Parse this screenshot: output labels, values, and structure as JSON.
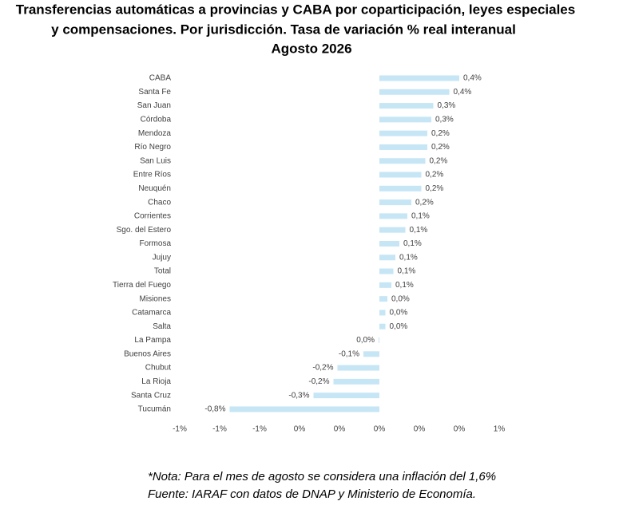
{
  "chart_data": {
    "type": "barh",
    "title": [
      "Transferencias automáticas a provincias y CABA por coparticipación, leyes especiales",
      "y compensaciones. Por jurisdicción. Tasa de variación % real interanual",
      "Agosto 2026"
    ],
    "categories": [
      "CABA",
      "Santa Fe",
      "San Juan",
      "Córdoba",
      "Mendoza",
      "Río Negro",
      "San Luis",
      "Entre Ríos",
      "Neuquén",
      "Chaco",
      "Corrientes",
      "Sgo. del Estero",
      "Formosa",
      "Jujuy",
      "Total",
      "Tierra del Fuego",
      "Misiones",
      "Catamarca",
      "Salta",
      "La Pampa",
      "Buenos Aires",
      "Chubut",
      "La Rioja",
      "Santa Cruz",
      "Tucumán"
    ],
    "values": [
      0.4,
      0.35,
      0.27,
      0.26,
      0.24,
      0.24,
      0.23,
      0.21,
      0.21,
      0.16,
      0.14,
      0.13,
      0.1,
      0.08,
      0.07,
      0.06,
      0.04,
      0.03,
      0.03,
      -0.004,
      -0.08,
      -0.21,
      -0.23,
      -0.33,
      -0.75
    ],
    "value_labels": [
      "0,4%",
      "0,4%",
      "0,3%",
      "0,3%",
      "0,2%",
      "0,2%",
      "0,2%",
      "0,2%",
      "0,2%",
      "0,2%",
      "0,1%",
      "0,1%",
      "0,1%",
      "0,1%",
      "0,1%",
      "0,1%",
      "0,0%",
      "0,0%",
      "0,0%",
      "0,0%",
      "-0,1%",
      "-0,2%",
      "-0,2%",
      "-0,3%",
      "-0,8%"
    ],
    "color": "#c6e6f6",
    "xlim": [
      -1.0,
      0.6
    ],
    "xticks": [
      {
        "value": -1.0,
        "label": "-1%"
      },
      {
        "value": -0.8,
        "label": "-1%"
      },
      {
        "value": -0.6,
        "label": "-1%"
      },
      {
        "value": -0.4,
        "label": "0%"
      },
      {
        "value": -0.2,
        "label": "0%"
      },
      {
        "value": 0,
        "label": "0%"
      },
      {
        "value": 0.2,
        "label": "0%"
      },
      {
        "value": 0.4,
        "label": "0%"
      },
      {
        "value": 0.6,
        "label": "1%"
      }
    ],
    "grid": false,
    "notes": [
      "*Nota:  Para el mes de agosto se considera una inflación del 1,6%",
      "Fuente: IARAF con datos de DNAP y Ministerio de Economía."
    ]
  }
}
